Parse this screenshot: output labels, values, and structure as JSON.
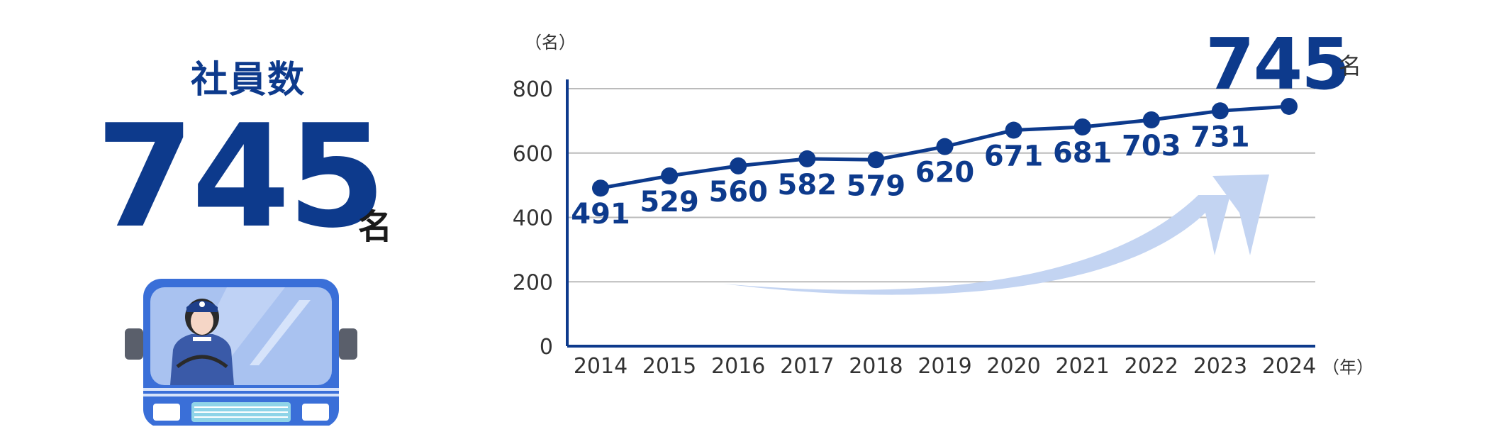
{
  "headline": "社員数",
  "big_number": "745",
  "big_unit": "名",
  "colors": {
    "primary": "#0d3a8c",
    "grid": "#bbbbbb",
    "arrow": "#c3d4f2",
    "bus": "#3a6fd8"
  },
  "chart_data": {
    "type": "line",
    "x": [
      "2014",
      "2015",
      "2016",
      "2017",
      "2018",
      "2019",
      "2020",
      "2021",
      "2022",
      "2023",
      "2024"
    ],
    "series": [
      {
        "values": [
          491,
          529,
          560,
          582,
          579,
          620,
          671,
          681,
          703,
          731,
          745
        ]
      }
    ],
    "data_labels": [
      "491",
      "529",
      "560",
      "582",
      "579",
      "620",
      "671",
      "681",
      "703",
      "731"
    ],
    "final_label": "745",
    "final_unit": "名",
    "y_unit": "（名）",
    "x_unit": "（年）",
    "ylim": [
      0,
      800
    ],
    "yticks": [
      0,
      200,
      400,
      600,
      800
    ],
    "ytick_labels": [
      "0",
      "200",
      "400",
      "600",
      "800"
    ],
    "grid": true,
    "legend": "none"
  }
}
